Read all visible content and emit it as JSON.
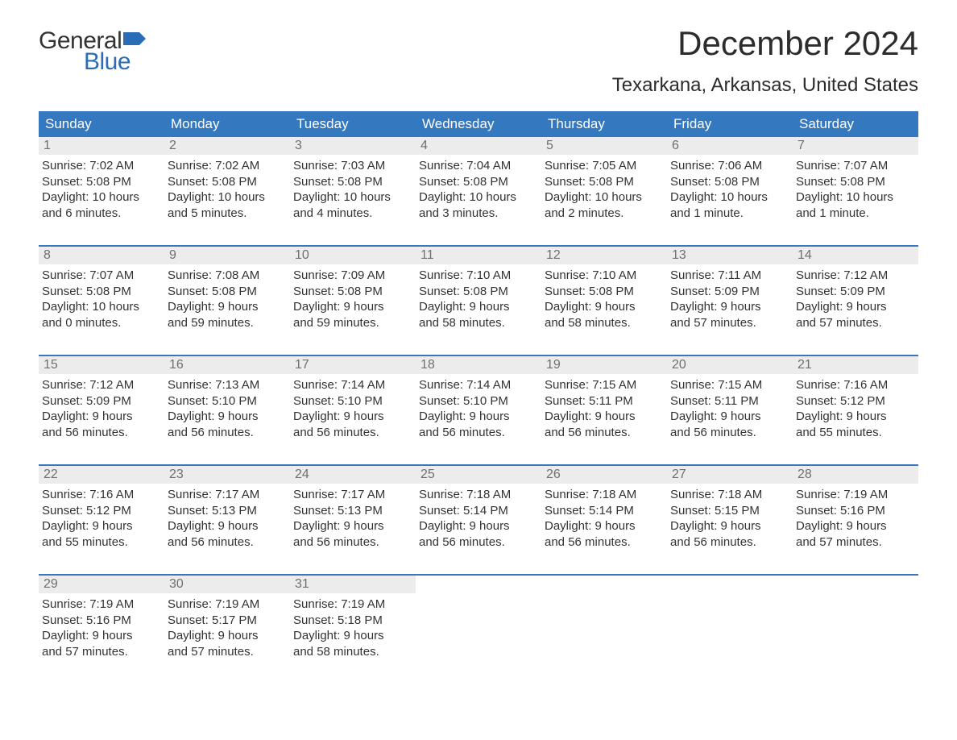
{
  "logo": {
    "text_general": "General",
    "text_blue": "Blue",
    "flag_color": "#2a6db6"
  },
  "title": "December 2024",
  "location": "Texarkana, Arkansas, United States",
  "colors": {
    "header_bg": "#3478c0",
    "header_text": "#ffffff",
    "daynum_bg": "#ececec",
    "daynum_text": "#6f6f6f",
    "body_text": "#333333",
    "week_border": "#3478c0",
    "page_bg": "#ffffff"
  },
  "day_headers": [
    "Sunday",
    "Monday",
    "Tuesday",
    "Wednesday",
    "Thursday",
    "Friday",
    "Saturday"
  ],
  "labels": {
    "sunrise": "Sunrise:",
    "sunset": "Sunset:",
    "daylight": "Daylight:"
  },
  "weeks": [
    [
      {
        "n": "1",
        "sr": "7:02 AM",
        "ss": "5:08 PM",
        "dl1": "10 hours",
        "dl2": "and 6 minutes."
      },
      {
        "n": "2",
        "sr": "7:02 AM",
        "ss": "5:08 PM",
        "dl1": "10 hours",
        "dl2": "and 5 minutes."
      },
      {
        "n": "3",
        "sr": "7:03 AM",
        "ss": "5:08 PM",
        "dl1": "10 hours",
        "dl2": "and 4 minutes."
      },
      {
        "n": "4",
        "sr": "7:04 AM",
        "ss": "5:08 PM",
        "dl1": "10 hours",
        "dl2": "and 3 minutes."
      },
      {
        "n": "5",
        "sr": "7:05 AM",
        "ss": "5:08 PM",
        "dl1": "10 hours",
        "dl2": "and 2 minutes."
      },
      {
        "n": "6",
        "sr": "7:06 AM",
        "ss": "5:08 PM",
        "dl1": "10 hours",
        "dl2": "and 1 minute."
      },
      {
        "n": "7",
        "sr": "7:07 AM",
        "ss": "5:08 PM",
        "dl1": "10 hours",
        "dl2": "and 1 minute."
      }
    ],
    [
      {
        "n": "8",
        "sr": "7:07 AM",
        "ss": "5:08 PM",
        "dl1": "10 hours",
        "dl2": "and 0 minutes."
      },
      {
        "n": "9",
        "sr": "7:08 AM",
        "ss": "5:08 PM",
        "dl1": "9 hours",
        "dl2": "and 59 minutes."
      },
      {
        "n": "10",
        "sr": "7:09 AM",
        "ss": "5:08 PM",
        "dl1": "9 hours",
        "dl2": "and 59 minutes."
      },
      {
        "n": "11",
        "sr": "7:10 AM",
        "ss": "5:08 PM",
        "dl1": "9 hours",
        "dl2": "and 58 minutes."
      },
      {
        "n": "12",
        "sr": "7:10 AM",
        "ss": "5:08 PM",
        "dl1": "9 hours",
        "dl2": "and 58 minutes."
      },
      {
        "n": "13",
        "sr": "7:11 AM",
        "ss": "5:09 PM",
        "dl1": "9 hours",
        "dl2": "and 57 minutes."
      },
      {
        "n": "14",
        "sr": "7:12 AM",
        "ss": "5:09 PM",
        "dl1": "9 hours",
        "dl2": "and 57 minutes."
      }
    ],
    [
      {
        "n": "15",
        "sr": "7:12 AM",
        "ss": "5:09 PM",
        "dl1": "9 hours",
        "dl2": "and 56 minutes."
      },
      {
        "n": "16",
        "sr": "7:13 AM",
        "ss": "5:10 PM",
        "dl1": "9 hours",
        "dl2": "and 56 minutes."
      },
      {
        "n": "17",
        "sr": "7:14 AM",
        "ss": "5:10 PM",
        "dl1": "9 hours",
        "dl2": "and 56 minutes."
      },
      {
        "n": "18",
        "sr": "7:14 AM",
        "ss": "5:10 PM",
        "dl1": "9 hours",
        "dl2": "and 56 minutes."
      },
      {
        "n": "19",
        "sr": "7:15 AM",
        "ss": "5:11 PM",
        "dl1": "9 hours",
        "dl2": "and 56 minutes."
      },
      {
        "n": "20",
        "sr": "7:15 AM",
        "ss": "5:11 PM",
        "dl1": "9 hours",
        "dl2": "and 56 minutes."
      },
      {
        "n": "21",
        "sr": "7:16 AM",
        "ss": "5:12 PM",
        "dl1": "9 hours",
        "dl2": "and 55 minutes."
      }
    ],
    [
      {
        "n": "22",
        "sr": "7:16 AM",
        "ss": "5:12 PM",
        "dl1": "9 hours",
        "dl2": "and 55 minutes."
      },
      {
        "n": "23",
        "sr": "7:17 AM",
        "ss": "5:13 PM",
        "dl1": "9 hours",
        "dl2": "and 56 minutes."
      },
      {
        "n": "24",
        "sr": "7:17 AM",
        "ss": "5:13 PM",
        "dl1": "9 hours",
        "dl2": "and 56 minutes."
      },
      {
        "n": "25",
        "sr": "7:18 AM",
        "ss": "5:14 PM",
        "dl1": "9 hours",
        "dl2": "and 56 minutes."
      },
      {
        "n": "26",
        "sr": "7:18 AM",
        "ss": "5:14 PM",
        "dl1": "9 hours",
        "dl2": "and 56 minutes."
      },
      {
        "n": "27",
        "sr": "7:18 AM",
        "ss": "5:15 PM",
        "dl1": "9 hours",
        "dl2": "and 56 minutes."
      },
      {
        "n": "28",
        "sr": "7:19 AM",
        "ss": "5:16 PM",
        "dl1": "9 hours",
        "dl2": "and 57 minutes."
      }
    ],
    [
      {
        "n": "29",
        "sr": "7:19 AM",
        "ss": "5:16 PM",
        "dl1": "9 hours",
        "dl2": "and 57 minutes."
      },
      {
        "n": "30",
        "sr": "7:19 AM",
        "ss": "5:17 PM",
        "dl1": "9 hours",
        "dl2": "and 57 minutes."
      },
      {
        "n": "31",
        "sr": "7:19 AM",
        "ss": "5:18 PM",
        "dl1": "9 hours",
        "dl2": "and 58 minutes."
      },
      null,
      null,
      null,
      null
    ]
  ]
}
